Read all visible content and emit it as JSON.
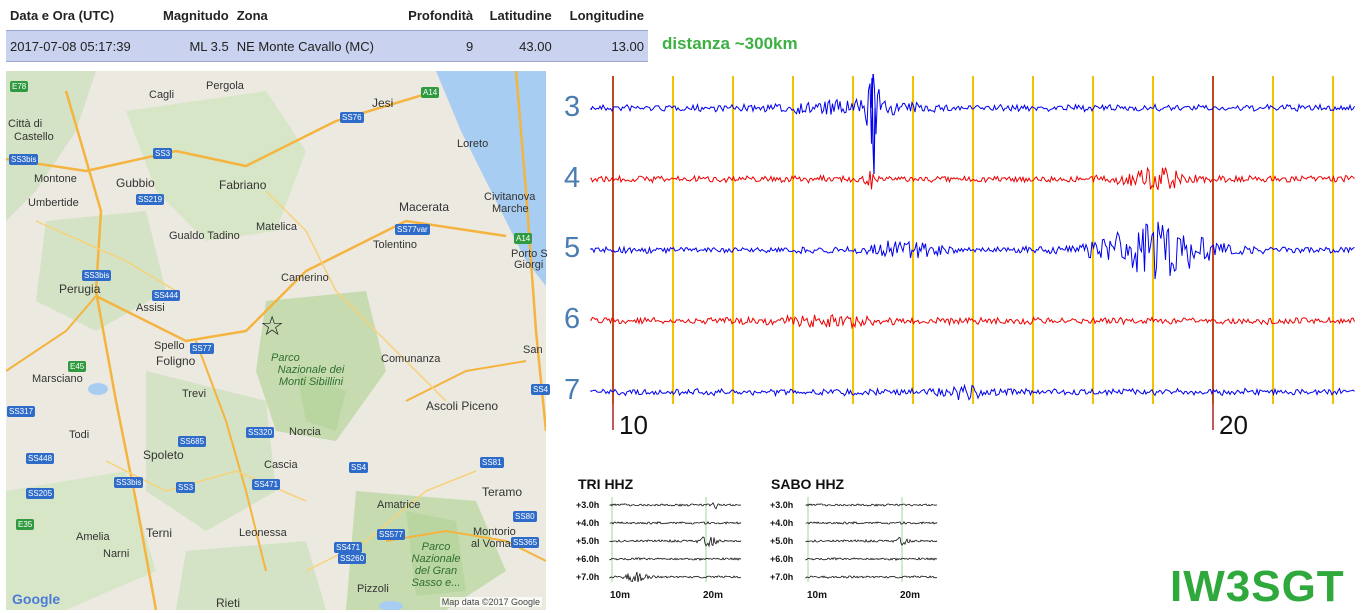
{
  "event_table": {
    "headers": {
      "datetime": "Data e Ora (UTC)",
      "magnitude": "Magnitudo",
      "zone": "Zona",
      "depth": "Profondità",
      "latitude": "Latitudine",
      "longitude": "Longitudine"
    },
    "row": {
      "datetime": "2017-07-08 05:17:39",
      "magnitude": "ML 3.5",
      "zone": "NE Monte Cavallo (MC)",
      "depth": "9",
      "latitude": "43.00",
      "longitude": "13.00"
    }
  },
  "distance": "distanza ~300km",
  "map": {
    "towns": [
      {
        "name": "Cagli"
      },
      {
        "name": "Pergola"
      },
      {
        "name": "Jesi"
      },
      {
        "name": "Città di"
      },
      {
        "name": "Castello"
      },
      {
        "name": "Loreto"
      },
      {
        "name": "Gubbio"
      },
      {
        "name": "Fabriano"
      },
      {
        "name": "Montone"
      },
      {
        "name": "Umbertide"
      },
      {
        "name": "Civitanova"
      },
      {
        "name": "Marche"
      },
      {
        "name": "Macerata"
      },
      {
        "name": "Matelica"
      },
      {
        "name": "Gualdo Tadino"
      },
      {
        "name": "Tolentino"
      },
      {
        "name": "Porto S"
      },
      {
        "name": "Giorgi"
      },
      {
        "name": "Perugia"
      },
      {
        "name": "Camerino"
      },
      {
        "name": "Assisi"
      },
      {
        "name": "Spello"
      },
      {
        "name": "Foligno"
      },
      {
        "name": "Comunanza"
      },
      {
        "name": "San"
      },
      {
        "name": "Marsciano"
      },
      {
        "name": "Trevi"
      },
      {
        "name": "Ascoli Piceno"
      },
      {
        "name": "Todi"
      },
      {
        "name": "Norcia"
      },
      {
        "name": "Spoleto"
      },
      {
        "name": "Cascia"
      },
      {
        "name": "Teramo"
      },
      {
        "name": "Amatrice"
      },
      {
        "name": "Amelia"
      },
      {
        "name": "Terni"
      },
      {
        "name": "Leonessa"
      },
      {
        "name": "Montorio"
      },
      {
        "name": "al Vomano"
      },
      {
        "name": "Narni"
      },
      {
        "name": "Pizzoli"
      },
      {
        "name": "Rieti"
      }
    ],
    "roads": [
      {
        "name": "E78"
      },
      {
        "name": "A14"
      },
      {
        "name": "SS76"
      },
      {
        "name": "SS3bis"
      },
      {
        "name": "SS3"
      },
      {
        "name": "SS219"
      },
      {
        "name": "SS77var"
      },
      {
        "name": "A14"
      },
      {
        "name": "SS3bis"
      },
      {
        "name": "SS444"
      },
      {
        "name": "SS77"
      },
      {
        "name": "E45"
      },
      {
        "name": "SS317"
      },
      {
        "name": "SS685"
      },
      {
        "name": "SS320"
      },
      {
        "name": "SS448"
      },
      {
        "name": "SS3bis"
      },
      {
        "name": "SS3"
      },
      {
        "name": "SS471"
      },
      {
        "name": "SS4"
      },
      {
        "name": "SS81"
      },
      {
        "name": "SS205"
      },
      {
        "name": "E35"
      },
      {
        "name": "SS471"
      },
      {
        "name": "SS577"
      },
      {
        "name": "SS260"
      },
      {
        "name": "SS365"
      },
      {
        "name": "SS80"
      },
      {
        "name": "SS4"
      }
    ],
    "parks": [
      {
        "lines": [
          "Parco",
          "Nazionale dei",
          "Monti Sibillini"
        ]
      },
      {
        "lines": [
          "Parco",
          "Nazionale",
          "del Gran",
          "Sasso e..."
        ]
      }
    ],
    "logo": "Google",
    "attribution": "Map data ©2017 Google"
  },
  "helicorder": {
    "row_labels": [
      "3",
      "4",
      "5",
      "6",
      "7"
    ],
    "time_labels": [
      "10",
      "20"
    ],
    "colors": {
      "blue": "#0000ee",
      "red": "#ee0000",
      "gridline": "#f2c200",
      "marker": "#b22222"
    }
  },
  "mini_plots": [
    {
      "title": "TRI HHZ",
      "hours": [
        "+3.0h",
        "+4.0h",
        "+5.0h",
        "+6.0h",
        "+7.0h"
      ],
      "x_labels": [
        "10m",
        "20m"
      ]
    },
    {
      "title": "SABO HHZ",
      "hours": [
        "+3.0h",
        "+4.0h",
        "+5.0h",
        "+6.0h",
        "+7.0h"
      ],
      "x_labels": [
        "10m",
        "20m"
      ]
    }
  ],
  "callsign": "IW3SGT"
}
